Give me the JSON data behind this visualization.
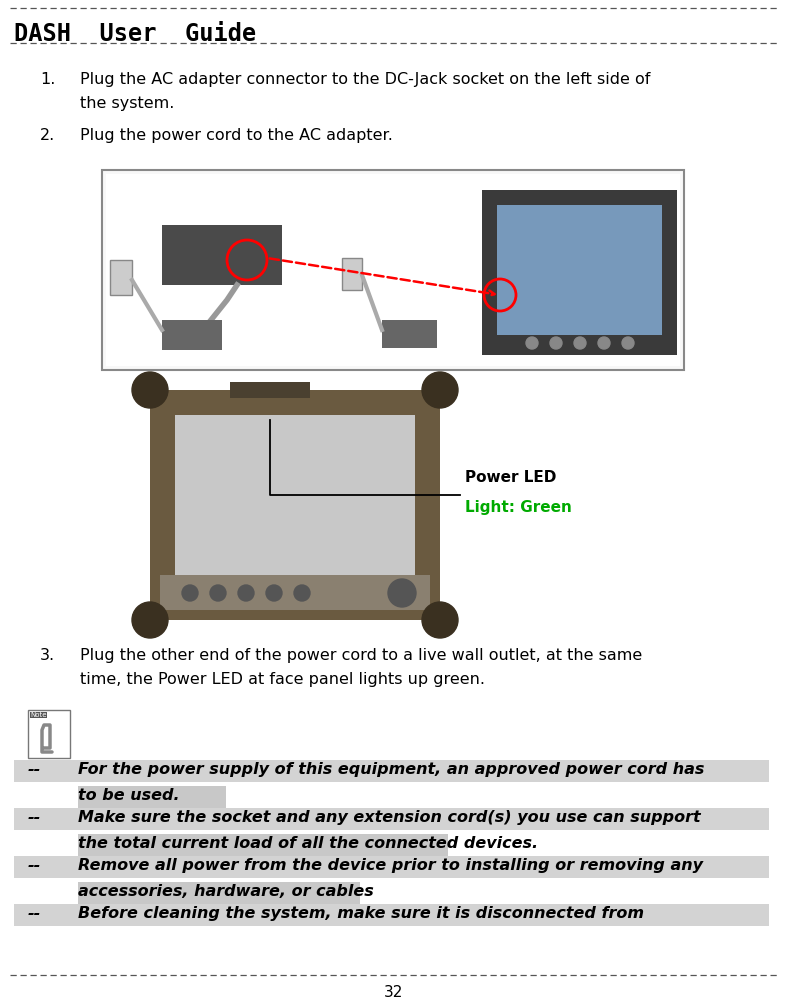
{
  "title": "DASH  User  Guide",
  "page_number": "32",
  "bg_color": "#ffffff",
  "item_fontsize": 11.5,
  "note_fontsize": 11.5,
  "items": [
    {
      "number": "1.",
      "line1": "Plug the AC adapter connector to the DC-Jack socket on the left side of",
      "line2": "the system."
    },
    {
      "number": "2.",
      "line1": "Plug the power cord to the AC adapter.",
      "line2": ""
    },
    {
      "number": "3.",
      "line1": "Plug the other end of the power cord to a live wall outlet, at the same",
      "line2": "time, the Power LED at face panel lights up green."
    }
  ],
  "notes": [
    {
      "dash": "--",
      "line1": "For the power supply of this equipment, an approved power cord has",
      "line2": "to be used."
    },
    {
      "dash": "--",
      "line1": "Make sure the socket and any extension cord(s) you use can support",
      "line2": "the total current load of all the connected devices."
    },
    {
      "dash": "--",
      "line1": "Remove all power from the device prior to installing or removing any",
      "line2": "accessories, hardware, or cables"
    },
    {
      "dash": "--",
      "line1": "Before cleaning the system, make sure it is disconnected from",
      "line2": ""
    }
  ],
  "highlight_color": "#d3d3d3",
  "highlight_color2": "#c8c8c8",
  "img1_gray": "#b0b0b0",
  "img2_dark": "#5a5a5a",
  "power_led_label": "Power LED",
  "light_green_label": "Light: Green",
  "light_green_color": "#00aa00"
}
